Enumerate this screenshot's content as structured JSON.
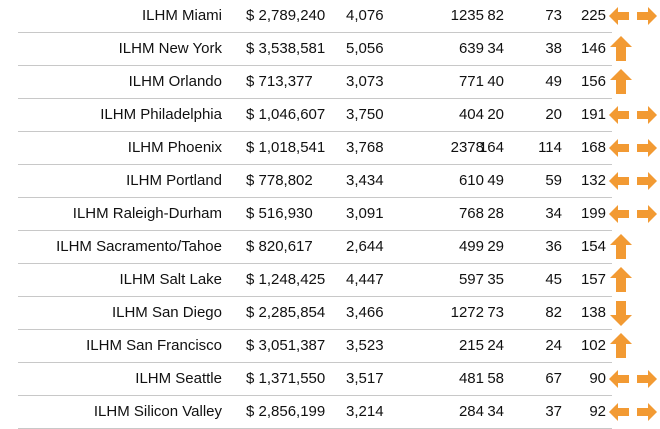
{
  "colors": {
    "arrow": "#F29A33",
    "divider": "#c8c8c8"
  },
  "rows": [
    {
      "name": "ILHM Miami",
      "revenue": "$ 2,789,240",
      "c2": "4,076",
      "c3": "1235",
      "c4": "82",
      "c5": "73",
      "c6": "225",
      "trend": "left-right-icon"
    },
    {
      "name": "ILHM New York",
      "revenue": "$ 3,538,581",
      "c2": "5,056",
      "c3": "639",
      "c4": "34",
      "c5": "38",
      "c6": "146",
      "trend": "up-icon"
    },
    {
      "name": "ILHM Orlando",
      "revenue": "$ 713,377",
      "c2": "3,073",
      "c3": "771",
      "c4": "40",
      "c5": "49",
      "c6": "156",
      "trend": "up-icon"
    },
    {
      "name": "ILHM Philadelphia",
      "revenue": "$ 1,046,607",
      "c2": "3,750",
      "c3": "404",
      "c4": "20",
      "c5": "20",
      "c6": "191",
      "trend": "left-right-icon"
    },
    {
      "name": "ILHM Phoenix",
      "revenue": "$ 1,018,541",
      "c2": "3,768",
      "c3": "2378",
      "c4": "164",
      "c5": "114",
      "c6": "168",
      "trend": "left-right-icon"
    },
    {
      "name": "ILHM Portland",
      "revenue": "$ 778,802",
      "c2": "3,434",
      "c3": "610",
      "c4": "49",
      "c5": "59",
      "c6": "132",
      "trend": "left-right-icon"
    },
    {
      "name": "ILHM Raleigh-Durham",
      "revenue": "$ 516,930",
      "c2": "3,091",
      "c3": "768",
      "c4": "28",
      "c5": "34",
      "c6": "199",
      "trend": "left-right-icon"
    },
    {
      "name": "ILHM Sacramento/Tahoe",
      "revenue": "$ 820,617",
      "c2": "2,644",
      "c3": "499",
      "c4": "29",
      "c5": "36",
      "c6": "154",
      "trend": "up-icon"
    },
    {
      "name": "ILHM Salt Lake",
      "revenue": "$ 1,248,425",
      "c2": "4,447",
      "c3": "597",
      "c4": "35",
      "c5": "45",
      "c6": "157",
      "trend": "up-icon"
    },
    {
      "name": "ILHM San Diego",
      "revenue": "$ 2,285,854",
      "c2": "3,466",
      "c3": "1272",
      "c4": "73",
      "c5": "82",
      "c6": "138",
      "trend": "down-icon"
    },
    {
      "name": "ILHM San Francisco",
      "revenue": "$ 3,051,387",
      "c2": "3,523",
      "c3": "215",
      "c4": "24",
      "c5": "24",
      "c6": "102",
      "trend": "up-icon"
    },
    {
      "name": "ILHM Seattle",
      "revenue": "$ 1,371,550",
      "c2": "3,517",
      "c3": "481",
      "c4": "58",
      "c5": "67",
      "c6": "90",
      "trend": "left-right-icon"
    },
    {
      "name": "ILHM Silicon Valley",
      "revenue": "$ 2,856,199",
      "c2": "3,214",
      "c3": "284",
      "c4": "34",
      "c5": "37",
      "c6": "92",
      "trend": "left-right-icon"
    }
  ]
}
